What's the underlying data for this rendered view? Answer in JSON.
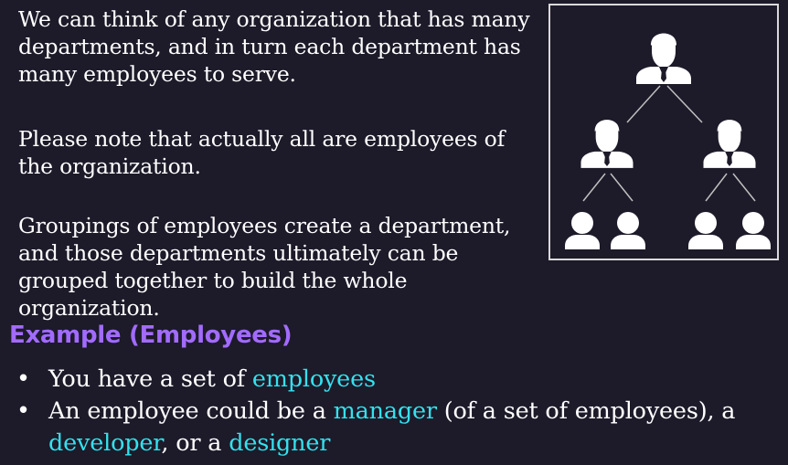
{
  "paragraphs": {
    "p1": "We can think of any organization that has many departments, and in turn each department has many employees to serve.",
    "p2": "Please note that actually all are employees of the organization.",
    "p3": "Groupings of employees create a department, and those departments ultimately can be grouped together to build the whole organization."
  },
  "section_heading": "Example (Employees)",
  "bullets": [
    {
      "t1": "You have a set of ",
      "h1": "employees"
    },
    {
      "t1": "An employee could be a ",
      "h1": "manager",
      "t2": " (of a set of employees), a ",
      "h2": "developer",
      "t3": ", or a ",
      "h3": "designer"
    }
  ],
  "colors": {
    "background": "#1d1a29",
    "heading": "#a26bff",
    "highlight": "#34e1ee",
    "text": "#ffffff"
  },
  "icons": {
    "org_chart": "org-chart-hierarchy-icon",
    "manager": "manager-person-icon",
    "employee": "employee-person-icon"
  }
}
